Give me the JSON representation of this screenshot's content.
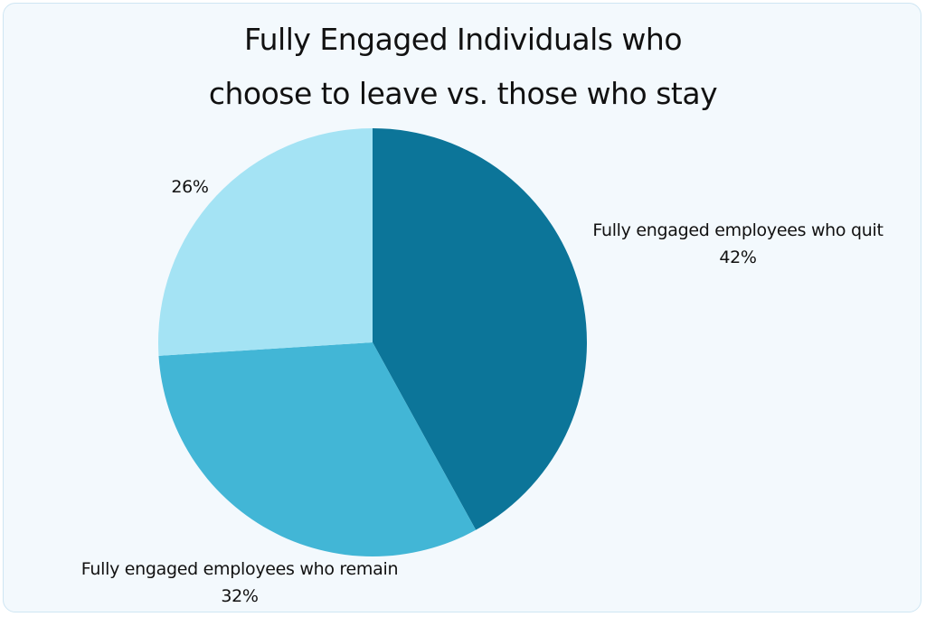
{
  "chart_data": {
    "type": "pie",
    "title": [
      "Fully Engaged Individuals who",
      "choose to leave vs. those who stay"
    ],
    "slices": [
      {
        "label": "Fully engaged employees who quit",
        "value": 42,
        "display": "42%",
        "color": "#0c7599"
      },
      {
        "label": "Fully engaged employees who remain",
        "value": 32,
        "display": "32%",
        "color": "#42b6d6"
      },
      {
        "label": "",
        "value": 26,
        "display": "26%",
        "color": "#a4e3f4"
      }
    ],
    "start_angle": "12 o'clock",
    "direction": "clockwise",
    "legend": "none"
  }
}
